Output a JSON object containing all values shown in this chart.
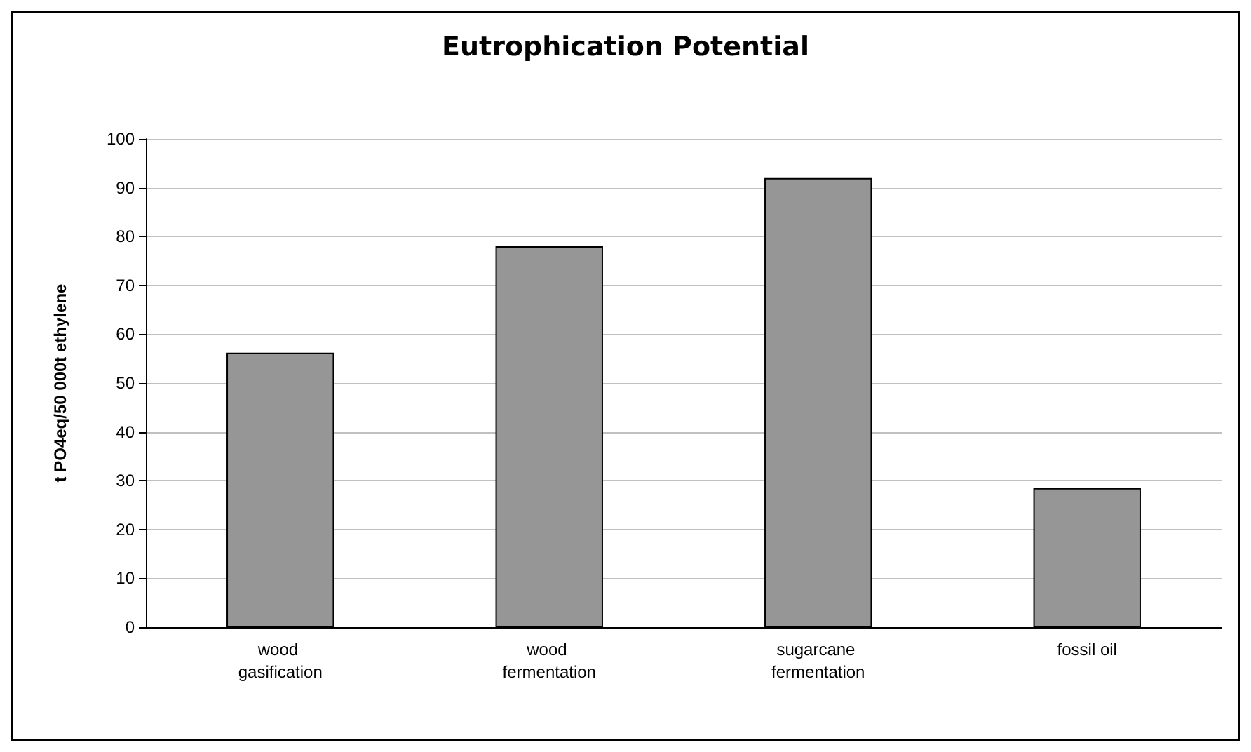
{
  "chart_data": {
    "type": "bar",
    "title": "Eutrophication Potential",
    "ylabel": "t PO4eq/50 000t ethylene",
    "categories": [
      "wood gasification",
      "wood fermentation",
      "sugarcane fermentation",
      "fossil oil"
    ],
    "values": [
      56.2,
      78,
      92,
      28.5
    ],
    "color": "#969696",
    "ylim": [
      0,
      100
    ],
    "yticks": [
      0,
      10,
      20,
      30,
      40,
      50,
      60,
      70,
      80,
      90,
      100
    ],
    "grid": "y"
  }
}
